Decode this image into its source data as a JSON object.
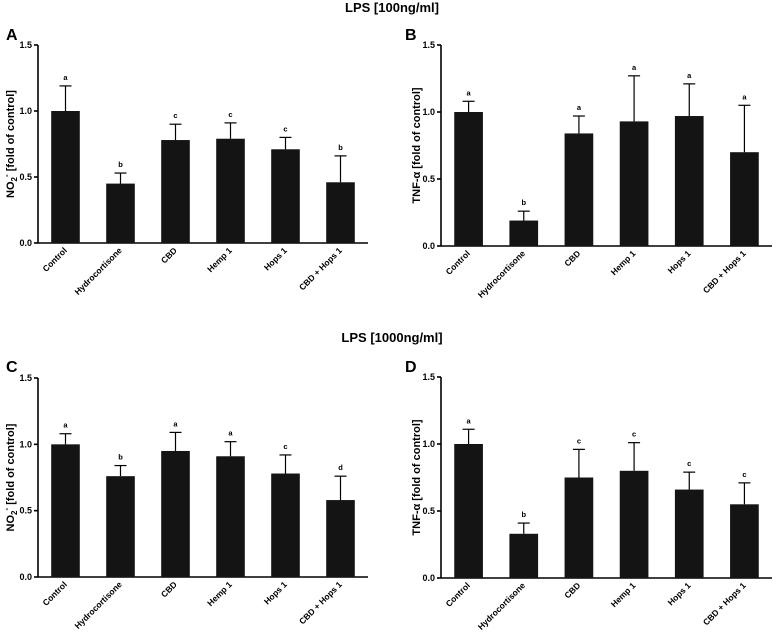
{
  "sections": [
    {
      "title": "LPS [100ng/ml]"
    },
    {
      "title": "LPS [1000ng/ml]"
    }
  ],
  "colors": {
    "bar": "#141414",
    "axis": "#000000"
  },
  "chart_data": [
    {
      "panel": "A",
      "section": "LPS [100ng/ml]",
      "type": "bar",
      "ylabel_main": "NO",
      "ylabel_sub": "2",
      "ylabel_sup": "-",
      "ylabel_rest": " [fold of control]",
      "ylim": [
        0,
        1.5
      ],
      "yticks": [
        "0.0",
        "0.5",
        "1.0",
        "1.5"
      ],
      "ytick_values": [
        0,
        0.5,
        1.0,
        1.5
      ],
      "categories": [
        "Control",
        "Hydrocortisone",
        "CBD",
        "Hemp 1",
        "Hops 1",
        "CBD + Hops 1"
      ],
      "values": [
        1.0,
        0.45,
        0.78,
        0.79,
        0.71,
        0.46
      ],
      "errors": [
        0.19,
        0.08,
        0.12,
        0.12,
        0.09,
        0.2
      ],
      "letters": [
        "a",
        "b",
        "c",
        "c",
        "c",
        "b"
      ]
    },
    {
      "panel": "B",
      "section": "LPS [100ng/ml]",
      "type": "bar",
      "ylabel_main": "TNF-α [fold of control]",
      "ylim": [
        0,
        1.5
      ],
      "yticks": [
        "0.0",
        "0.5",
        "1.0",
        "1.5"
      ],
      "ytick_values": [
        0,
        0.5,
        1.0,
        1.5
      ],
      "categories": [
        "Control",
        "Hydrocortisone",
        "CBD",
        "Hemp 1",
        "Hops 1",
        "CBD + Hops 1"
      ],
      "values": [
        1.0,
        0.19,
        0.84,
        0.93,
        0.97,
        0.7
      ],
      "errors": [
        0.08,
        0.07,
        0.13,
        0.34,
        0.24,
        0.35
      ],
      "letters": [
        "a",
        "b",
        "a",
        "a",
        "a",
        "a"
      ]
    },
    {
      "panel": "C",
      "section": "LPS [1000ng/ml]",
      "type": "bar",
      "ylabel_main": "NO",
      "ylabel_sub": "2",
      "ylabel_sup": "-",
      "ylabel_rest": " [fold of control]",
      "ylim": [
        0,
        1.5
      ],
      "yticks": [
        "0.0",
        "0.5",
        "1.0",
        "1.5"
      ],
      "ytick_values": [
        0,
        0.5,
        1.0,
        1.5
      ],
      "categories": [
        "Control",
        "Hydrocortisone",
        "CBD",
        "Hemp 1",
        "Hops 1",
        "CBD + Hops 1"
      ],
      "values": [
        1.0,
        0.76,
        0.95,
        0.91,
        0.78,
        0.58
      ],
      "errors": [
        0.08,
        0.08,
        0.14,
        0.11,
        0.14,
        0.18
      ],
      "letters": [
        "a",
        "b",
        "a",
        "a",
        "c",
        "d"
      ]
    },
    {
      "panel": "D",
      "section": "LPS [1000ng/ml]",
      "type": "bar",
      "ylabel_main": "TNF-α [fold of control]",
      "ylim": [
        0,
        1.5
      ],
      "yticks": [
        "0.0",
        "0.5",
        "1.0",
        "1.5"
      ],
      "ytick_values": [
        0,
        0.5,
        1.0,
        1.5
      ],
      "categories": [
        "Control",
        "Hydrocortisone",
        "CBD",
        "Hemp 1",
        "Hops 1",
        "CBD + Hops 1"
      ],
      "values": [
        1.0,
        0.33,
        0.75,
        0.8,
        0.66,
        0.55
      ],
      "errors": [
        0.11,
        0.08,
        0.21,
        0.21,
        0.13,
        0.16
      ],
      "letters": [
        "a",
        "b",
        "c",
        "c",
        "c",
        "c"
      ]
    }
  ]
}
